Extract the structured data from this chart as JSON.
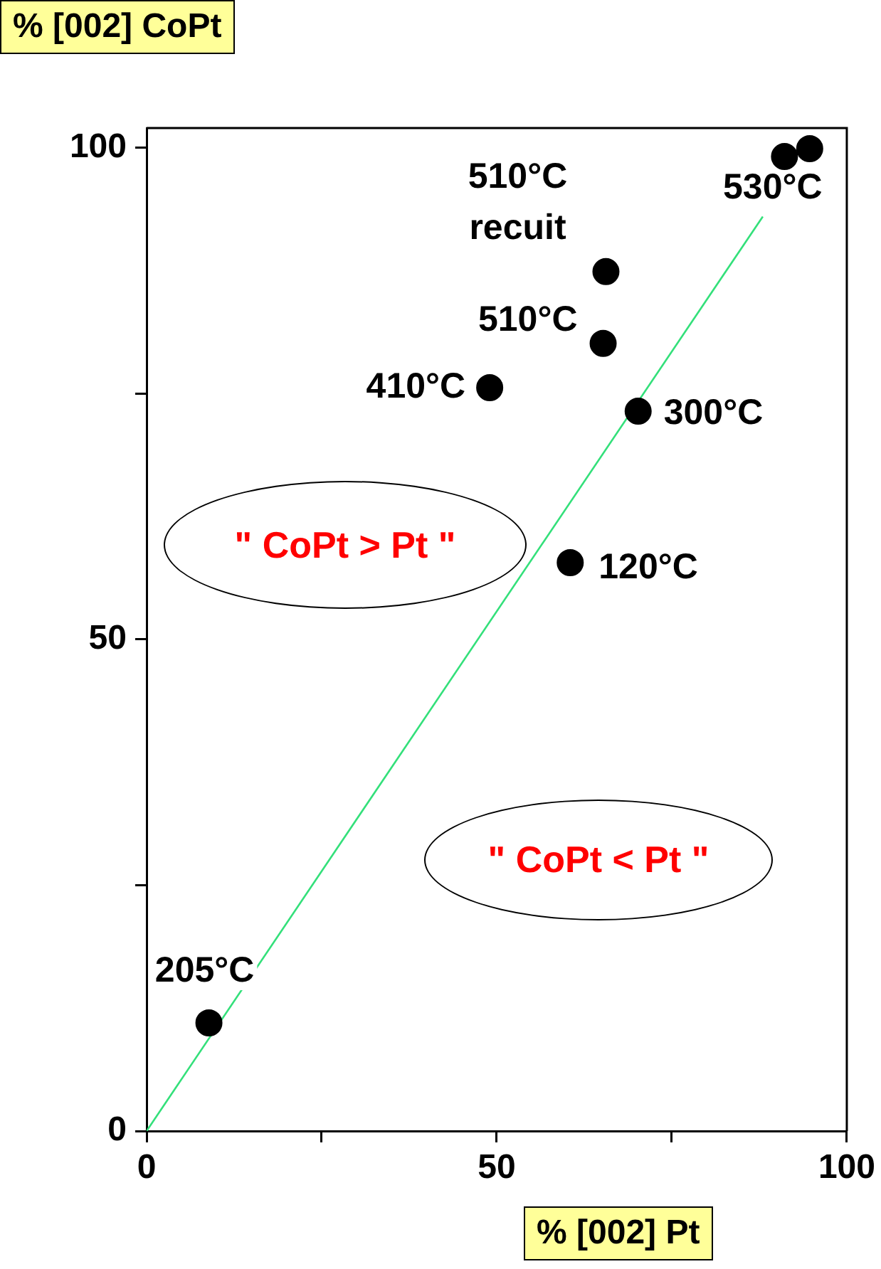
{
  "chart_data": {
    "type": "scatter",
    "xlabel": "% [002] Pt",
    "ylabel": "% [002] CoPt",
    "xlim": [
      0,
      100
    ],
    "ylim": [
      0,
      102
    ],
    "xticks": [
      0,
      {
        "value": 25,
        "label": null
      },
      50,
      {
        "value": 75,
        "label": null
      },
      100
    ],
    "yticks": [
      0,
      {
        "value": 25,
        "label": null
      },
      50,
      {
        "value": 75,
        "label": null
      },
      100
    ],
    "marker": "circle",
    "series": [
      {
        "type": "scatter",
        "color": "#000000",
        "x": [
          8.9,
          60.5,
          70.2,
          49,
          65.2,
          65.6,
          91.1,
          94.7
        ],
        "values": [
          11,
          57.8,
          73.2,
          75.6,
          80.1,
          87.4,
          99.1,
          99.9
        ]
      },
      {
        "type": "line",
        "color": "#33e07a",
        "marker": "none",
        "x": [
          0,
          88
        ],
        "values": [
          0,
          93
        ]
      }
    ],
    "annotations": [
      {
        "text": "510°C recuit",
        "x": 65.6,
        "y": 87.4
      },
      {
        "text": "530°C",
        "x": 94.7,
        "y": 99.9
      },
      {
        "text": "510°C",
        "x": 65.2,
        "y": 80.1
      },
      {
        "text": "410°C",
        "x": 49,
        "y": 75.6
      },
      {
        "text": "300°C",
        "x": 70.2,
        "y": 73.2
      },
      {
        "text": "120°C",
        "x": 60.5,
        "y": 57.8
      },
      {
        "text": "205°C",
        "x": 8.9,
        "y": 11
      },
      "\" CoPt > Pt \"",
      "\" CoPt < Pt \""
    ]
  }
}
